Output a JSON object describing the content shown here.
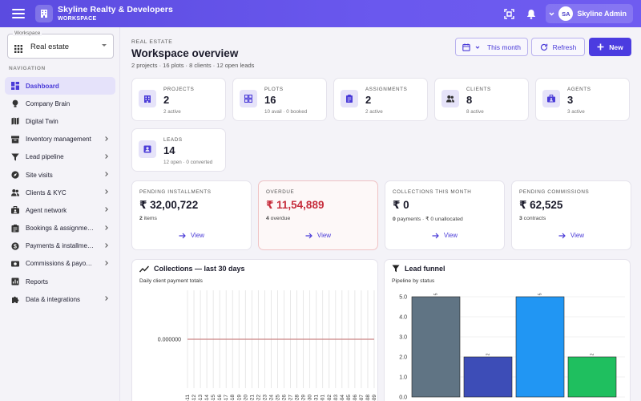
{
  "header": {
    "brand_title": "Skyline Realty & Developers",
    "brand_sub": "WORKSPACE",
    "user_initials": "SA",
    "user_name": "Skyline Admin"
  },
  "sidebar": {
    "workspace_legend": "Workspace",
    "workspace_value": "Real estate",
    "nav_label": "NAVIGATION",
    "items": [
      {
        "label": "Dashboard",
        "icon": "dashboard-icon",
        "active": true,
        "chevron": false
      },
      {
        "label": "Company Brain",
        "icon": "lightbulb-icon",
        "active": false,
        "chevron": false
      },
      {
        "label": "Digital Twin",
        "icon": "map-icon",
        "active": false,
        "chevron": false
      },
      {
        "label": "Inventory management",
        "icon": "inventory-icon",
        "active": false,
        "chevron": true
      },
      {
        "label": "Lead pipeline",
        "icon": "funnel-icon",
        "active": false,
        "chevron": true
      },
      {
        "label": "Site visits",
        "icon": "compass-icon",
        "active": false,
        "chevron": true
      },
      {
        "label": "Clients & KYC",
        "icon": "people-icon",
        "active": false,
        "chevron": true
      },
      {
        "label": "Agent network",
        "icon": "agent-icon",
        "active": false,
        "chevron": true
      },
      {
        "label": "Bookings & assignme…",
        "icon": "booking-icon",
        "active": false,
        "chevron": true
      },
      {
        "label": "Payments & installme…",
        "icon": "payment-icon",
        "active": false,
        "chevron": true
      },
      {
        "label": "Commissions & payo…",
        "icon": "commission-icon",
        "active": false,
        "chevron": true
      },
      {
        "label": "Reports",
        "icon": "reports-icon",
        "active": false,
        "chevron": false
      },
      {
        "label": "Data & integrations",
        "icon": "puzzle-icon",
        "active": false,
        "chevron": true
      }
    ]
  },
  "page": {
    "eyebrow": "REAL ESTATE",
    "title": "Workspace overview",
    "subtitle": "2 projects · 16 plots · 8 clients · 12 open leads",
    "btn_month": "This month",
    "btn_refresh": "Refresh",
    "btn_new": "New"
  },
  "stats": [
    {
      "label": "PROJECTS",
      "value": "2",
      "sub": "2 active",
      "icon": "building-icon"
    },
    {
      "label": "PLOTS",
      "value": "16",
      "sub": "10 avail · 0 booked",
      "icon": "grid-icon"
    },
    {
      "label": "ASSIGNMENTS",
      "value": "2",
      "sub": "2 active",
      "icon": "clipboard-icon"
    },
    {
      "label": "CLIENTS",
      "value": "8",
      "sub": "8 active",
      "icon": "people-icon"
    },
    {
      "label": "AGENTS",
      "value": "3",
      "sub": "3 active",
      "icon": "badge-icon"
    },
    {
      "label": "LEADS",
      "value": "14",
      "sub": "12 open · 0 converted",
      "icon": "contact-icon"
    }
  ],
  "finance": [
    {
      "label": "PENDING INSTALLMENTS",
      "value": "₹ 32,00,722",
      "sub_bold": "2",
      "sub_rest": " items",
      "view": "View"
    },
    {
      "label": "OVERDUE",
      "value": "₹ 11,54,889",
      "sub_bold": "4",
      "sub_rest": " overdue",
      "view": "View"
    },
    {
      "label": "COLLECTIONS THIS MONTH",
      "value": "₹ 0",
      "sub_bold": "0",
      "sub_rest": " payments · ₹ 0 unallocated",
      "view": "View"
    },
    {
      "label": "PENDING COMMISSIONS",
      "value": "₹ 62,525",
      "sub_bold": "3",
      "sub_rest": " contracts",
      "view": "View"
    }
  ],
  "collections_panel": {
    "title": "Collections — last 30 days",
    "subtitle": "Daily client payment totals"
  },
  "funnel_panel": {
    "title": "Lead funnel",
    "subtitle": "Pipeline by status"
  },
  "chart_data": [
    {
      "type": "line",
      "title": "Collections — last 30 days",
      "subtitle": "Daily client payment totals",
      "x": [
        "-11",
        "-12",
        "-13",
        "-14",
        "-15",
        "-16",
        "-17",
        "-18",
        "-19",
        "-20",
        "-21",
        "-22",
        "-23",
        "-24",
        "-25",
        "-26",
        "-27",
        "-28",
        "-29",
        "-30",
        "-31",
        "-01",
        "-02",
        "-03",
        "-04",
        "-05",
        "-06",
        "-07",
        "-08",
        "-09"
      ],
      "values": [
        0,
        0,
        0,
        0,
        0,
        0,
        0,
        0,
        0,
        0,
        0,
        0,
        0,
        0,
        0,
        0,
        0,
        0,
        0,
        0,
        0,
        0,
        0,
        0,
        0,
        0,
        0,
        0,
        0,
        0
      ],
      "ytick": "0.000000",
      "line_color": "#c98585",
      "grid": true
    },
    {
      "type": "bar",
      "title": "Lead funnel",
      "subtitle": "Pipeline by status",
      "categories": [
        "",
        "",
        "",
        ""
      ],
      "values": [
        5,
        2,
        5,
        2
      ],
      "bar_labels": [
        "5",
        "2",
        "5",
        "2"
      ],
      "colors": [
        "#607484",
        "#3d4db7",
        "#2196f3",
        "#1fbf5f"
      ],
      "yticks": [
        "0.0",
        "1.0",
        "2.0",
        "3.0",
        "4.0",
        "5.0"
      ],
      "ylim": [
        0,
        5
      ]
    }
  ]
}
